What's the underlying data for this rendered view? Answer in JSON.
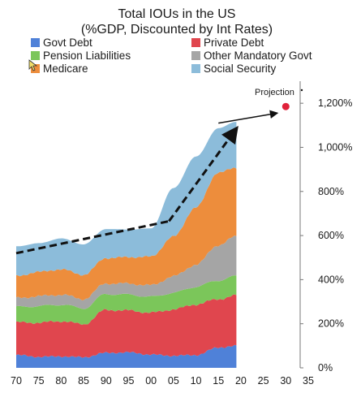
{
  "chart_data": {
    "type": "area",
    "title": "Total IOUs in the US",
    "subtitle": "(%GDP, Discounted by Int Rates)",
    "x": [
      1970,
      1975,
      1980,
      1985,
      1990,
      1995,
      2000,
      2005,
      2010,
      2015,
      2019
    ],
    "xticks": [
      "70",
      "75",
      "80",
      "85",
      "90",
      "95",
      "00",
      "05",
      "10",
      "15",
      "20",
      "25",
      "30",
      "35"
    ],
    "xlim": [
      1970,
      2035
    ],
    "ylim": [
      0,
      1300
    ],
    "yticks": [
      "0%",
      "200%",
      "400%",
      "600%",
      "800%",
      "1,000%",
      "1,200%"
    ],
    "yaxis_position": "right",
    "legend_position": "top",
    "stacked": true,
    "series": [
      {
        "name": "Govt Debt",
        "color": "#4f81d8",
        "values": [
          58,
          50,
          52,
          48,
          68,
          70,
          60,
          55,
          58,
          92,
          100
        ]
      },
      {
        "name": "Private Debt",
        "color": "#e0464e",
        "values": [
          148,
          155,
          160,
          150,
          195,
          190,
          190,
          210,
          230,
          220,
          228
        ]
      },
      {
        "name": "Pension Liabilities",
        "color": "#7bc65a",
        "values": [
          70,
          75,
          75,
          72,
          72,
          72,
          72,
          75,
          80,
          85,
          88
        ]
      },
      {
        "name": "Other Mandatory Govt",
        "color": "#a5a5a5",
        "values": [
          40,
          45,
          45,
          42,
          48,
          50,
          52,
          75,
          100,
          160,
          180
        ]
      },
      {
        "name": "Medicare",
        "color": "#ed8d3c",
        "values": [
          100,
          110,
          115,
          110,
          115,
          120,
          130,
          180,
          260,
          330,
          310
        ]
      },
      {
        "name": "Social Security",
        "color": "#8cbcda",
        "values": [
          135,
          130,
          140,
          138,
          132,
          125,
          128,
          220,
          230,
          200,
          210
        ]
      }
    ],
    "annotations": {
      "projection_label": "Projection",
      "projection_point": {
        "x": 2030,
        "y": 1185,
        "color": "#e0213a"
      },
      "trend_line_1": [
        [
          1970,
          520
        ],
        [
          2004,
          665
        ]
      ],
      "trend_line_2": [
        [
          2004,
          665
        ],
        [
          2019,
          1085
        ]
      ],
      "projection_arrow": [
        [
          2015,
          1110
        ],
        [
          2028,
          1155
        ]
      ]
    }
  }
}
